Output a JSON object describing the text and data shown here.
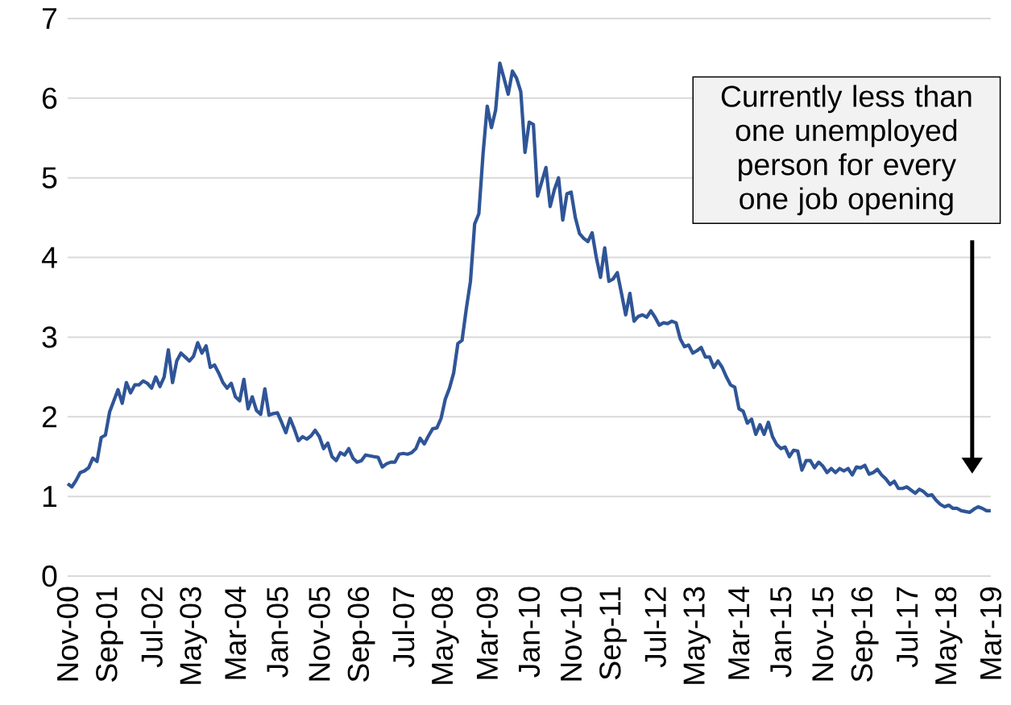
{
  "chart_data": {
    "type": "line",
    "color": "#2f5597",
    "grid": "y",
    "ylim": [
      0,
      7
    ],
    "yticks": [
      0,
      1,
      2,
      3,
      4,
      5,
      6,
      7
    ],
    "annotations": [
      "Currently less than one unemployed person for every one job opening"
    ],
    "categories": [
      "Nov-00",
      null,
      null,
      null,
      null,
      null,
      null,
      null,
      null,
      null,
      "Sep-01",
      null,
      null,
      null,
      null,
      null,
      null,
      null,
      null,
      null,
      "Jul-02",
      null,
      null,
      null,
      null,
      null,
      null,
      null,
      null,
      null,
      "May-03",
      null,
      null,
      null,
      null,
      null,
      null,
      null,
      null,
      null,
      "Mar-04",
      null,
      null,
      null,
      null,
      null,
      null,
      null,
      null,
      null,
      "Jan-05",
      null,
      null,
      null,
      null,
      null,
      null,
      null,
      null,
      null,
      "Nov-05",
      null,
      null,
      null,
      null,
      null,
      null,
      null,
      null,
      null,
      "Sep-06",
      null,
      null,
      null,
      null,
      null,
      null,
      null,
      null,
      null,
      "Jul-07",
      null,
      null,
      null,
      null,
      null,
      null,
      null,
      null,
      null,
      "May-08",
      null,
      null,
      null,
      null,
      null,
      null,
      null,
      null,
      null,
      "Mar-09",
      null,
      null,
      null,
      null,
      null,
      null,
      null,
      null,
      null,
      "Jan-10",
      null,
      null,
      null,
      null,
      null,
      null,
      null,
      null,
      null,
      "Nov-10",
      null,
      null,
      null,
      null,
      null,
      null,
      null,
      null,
      null,
      "Sep-11",
      null,
      null,
      null,
      null,
      null,
      null,
      null,
      null,
      null,
      "Jul-12",
      null,
      null,
      null,
      null,
      null,
      null,
      null,
      null,
      null,
      "May-13",
      null,
      null,
      null,
      null,
      null,
      null,
      null,
      null,
      null,
      "Mar-14",
      null,
      null,
      null,
      null,
      null,
      null,
      null,
      null,
      null,
      "Jan-15",
      null,
      null,
      null,
      null,
      null,
      null,
      null,
      null,
      null,
      "Nov-15",
      null,
      null,
      null,
      null,
      null,
      null,
      null,
      null,
      null,
      "Sep-16",
      null,
      null,
      null,
      null,
      null,
      null,
      null,
      null,
      null,
      "Jul-17",
      null,
      null,
      null,
      null,
      null,
      null,
      null,
      null,
      null,
      "May-18",
      null,
      null,
      null,
      null,
      null,
      null,
      null,
      null,
      null,
      "Mar-19"
    ],
    "values": [
      1.16,
      1.12,
      1.2,
      1.3,
      1.32,
      1.36,
      1.48,
      1.44,
      1.74,
      1.77,
      2.06,
      2.2,
      2.34,
      2.17,
      2.43,
      2.3,
      2.4,
      2.4,
      2.45,
      2.42,
      2.36,
      2.5,
      2.38,
      2.5,
      2.84,
      2.43,
      2.7,
      2.8,
      2.75,
      2.7,
      2.76,
      2.93,
      2.8,
      2.89,
      2.62,
      2.65,
      2.55,
      2.43,
      2.36,
      2.42,
      2.25,
      2.2,
      2.47,
      2.1,
      2.25,
      2.08,
      2.03,
      2.35,
      2.02,
      2.04,
      2.05,
      1.93,
      1.8,
      1.98,
      1.85,
      1.7,
      1.75,
      1.72,
      1.76,
      1.83,
      1.75,
      1.6,
      1.67,
      1.5,
      1.45,
      1.55,
      1.52,
      1.6,
      1.48,
      1.43,
      1.45,
      1.52,
      1.51,
      1.5,
      1.49,
      1.37,
      1.41,
      1.43,
      1.43,
      1.53,
      1.54,
      1.53,
      1.55,
      1.6,
      1.73,
      1.66,
      1.76,
      1.85,
      1.86,
      1.98,
      2.22,
      2.36,
      2.55,
      2.92,
      2.96,
      3.35,
      3.7,
      4.42,
      4.55,
      5.3,
      5.9,
      5.63,
      5.85,
      6.44,
      6.25,
      6.05,
      6.34,
      6.25,
      6.08,
      5.32,
      5.7,
      5.67,
      4.77,
      4.95,
      5.13,
      4.64,
      4.85,
      5.0,
      4.47,
      4.8,
      4.82,
      4.5,
      4.3,
      4.24,
      4.2,
      4.31,
      4.0,
      3.75,
      4.12,
      3.7,
      3.73,
      3.81,
      3.55,
      3.28,
      3.55,
      3.2,
      3.26,
      3.28,
      3.25,
      3.33,
      3.25,
      3.15,
      3.18,
      3.17,
      3.2,
      3.18,
      2.98,
      2.88,
      2.9,
      2.8,
      2.83,
      2.87,
      2.75,
      2.75,
      2.62,
      2.7,
      2.62,
      2.5,
      2.4,
      2.37,
      2.1,
      2.07,
      1.92,
      1.97,
      1.78,
      1.9,
      1.78,
      1.93,
      1.75,
      1.65,
      1.6,
      1.62,
      1.5,
      1.58,
      1.57,
      1.33,
      1.45,
      1.45,
      1.36,
      1.43,
      1.38,
      1.3,
      1.35,
      1.3,
      1.35,
      1.32,
      1.35,
      1.27,
      1.37,
      1.36,
      1.39,
      1.28,
      1.3,
      1.34,
      1.27,
      1.22,
      1.15,
      1.19,
      1.1,
      1.1,
      1.12,
      1.08,
      1.04,
      1.09,
      1.06,
      1.01,
      1.02,
      0.95,
      0.9,
      0.87,
      0.89,
      0.85,
      0.85,
      0.82,
      0.81,
      0.8,
      0.84,
      0.87,
      0.85,
      0.82,
      0.82
    ]
  }
}
